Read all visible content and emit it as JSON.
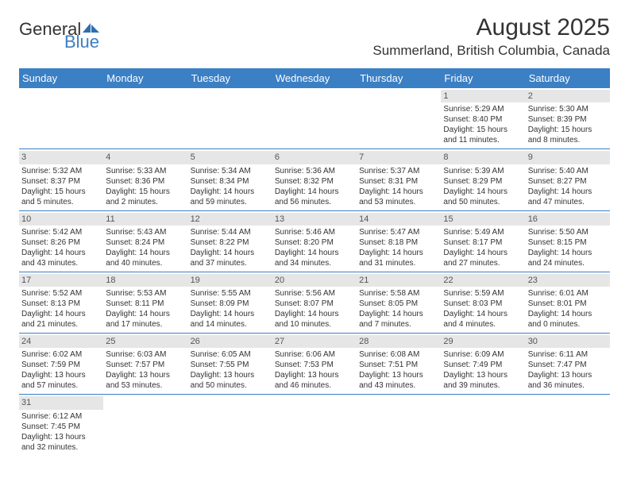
{
  "logo": {
    "general": "General",
    "blue": "Blue"
  },
  "title": "August 2025",
  "location": "Summerland, British Columbia, Canada",
  "colors": {
    "header_bg": "#3b7fc4",
    "header_text": "#ffffff",
    "row_divider": "#3b7fc4",
    "daynum_bg": "#e6e6e6",
    "text": "#333333"
  },
  "dayHeaders": [
    "Sunday",
    "Monday",
    "Tuesday",
    "Wednesday",
    "Thursday",
    "Friday",
    "Saturday"
  ],
  "weeks": [
    [
      null,
      null,
      null,
      null,
      null,
      {
        "n": "1",
        "sr": "Sunrise: 5:29 AM",
        "ss": "Sunset: 8:40 PM",
        "dl1": "Daylight: 15 hours",
        "dl2": "and 11 minutes."
      },
      {
        "n": "2",
        "sr": "Sunrise: 5:30 AM",
        "ss": "Sunset: 8:39 PM",
        "dl1": "Daylight: 15 hours",
        "dl2": "and 8 minutes."
      }
    ],
    [
      {
        "n": "3",
        "sr": "Sunrise: 5:32 AM",
        "ss": "Sunset: 8:37 PM",
        "dl1": "Daylight: 15 hours",
        "dl2": "and 5 minutes."
      },
      {
        "n": "4",
        "sr": "Sunrise: 5:33 AM",
        "ss": "Sunset: 8:36 PM",
        "dl1": "Daylight: 15 hours",
        "dl2": "and 2 minutes."
      },
      {
        "n": "5",
        "sr": "Sunrise: 5:34 AM",
        "ss": "Sunset: 8:34 PM",
        "dl1": "Daylight: 14 hours",
        "dl2": "and 59 minutes."
      },
      {
        "n": "6",
        "sr": "Sunrise: 5:36 AM",
        "ss": "Sunset: 8:32 PM",
        "dl1": "Daylight: 14 hours",
        "dl2": "and 56 minutes."
      },
      {
        "n": "7",
        "sr": "Sunrise: 5:37 AM",
        "ss": "Sunset: 8:31 PM",
        "dl1": "Daylight: 14 hours",
        "dl2": "and 53 minutes."
      },
      {
        "n": "8",
        "sr": "Sunrise: 5:39 AM",
        "ss": "Sunset: 8:29 PM",
        "dl1": "Daylight: 14 hours",
        "dl2": "and 50 minutes."
      },
      {
        "n": "9",
        "sr": "Sunrise: 5:40 AM",
        "ss": "Sunset: 8:27 PM",
        "dl1": "Daylight: 14 hours",
        "dl2": "and 47 minutes."
      }
    ],
    [
      {
        "n": "10",
        "sr": "Sunrise: 5:42 AM",
        "ss": "Sunset: 8:26 PM",
        "dl1": "Daylight: 14 hours",
        "dl2": "and 43 minutes."
      },
      {
        "n": "11",
        "sr": "Sunrise: 5:43 AM",
        "ss": "Sunset: 8:24 PM",
        "dl1": "Daylight: 14 hours",
        "dl2": "and 40 minutes."
      },
      {
        "n": "12",
        "sr": "Sunrise: 5:44 AM",
        "ss": "Sunset: 8:22 PM",
        "dl1": "Daylight: 14 hours",
        "dl2": "and 37 minutes."
      },
      {
        "n": "13",
        "sr": "Sunrise: 5:46 AM",
        "ss": "Sunset: 8:20 PM",
        "dl1": "Daylight: 14 hours",
        "dl2": "and 34 minutes."
      },
      {
        "n": "14",
        "sr": "Sunrise: 5:47 AM",
        "ss": "Sunset: 8:18 PM",
        "dl1": "Daylight: 14 hours",
        "dl2": "and 31 minutes."
      },
      {
        "n": "15",
        "sr": "Sunrise: 5:49 AM",
        "ss": "Sunset: 8:17 PM",
        "dl1": "Daylight: 14 hours",
        "dl2": "and 27 minutes."
      },
      {
        "n": "16",
        "sr": "Sunrise: 5:50 AM",
        "ss": "Sunset: 8:15 PM",
        "dl1": "Daylight: 14 hours",
        "dl2": "and 24 minutes."
      }
    ],
    [
      {
        "n": "17",
        "sr": "Sunrise: 5:52 AM",
        "ss": "Sunset: 8:13 PM",
        "dl1": "Daylight: 14 hours",
        "dl2": "and 21 minutes."
      },
      {
        "n": "18",
        "sr": "Sunrise: 5:53 AM",
        "ss": "Sunset: 8:11 PM",
        "dl1": "Daylight: 14 hours",
        "dl2": "and 17 minutes."
      },
      {
        "n": "19",
        "sr": "Sunrise: 5:55 AM",
        "ss": "Sunset: 8:09 PM",
        "dl1": "Daylight: 14 hours",
        "dl2": "and 14 minutes."
      },
      {
        "n": "20",
        "sr": "Sunrise: 5:56 AM",
        "ss": "Sunset: 8:07 PM",
        "dl1": "Daylight: 14 hours",
        "dl2": "and 10 minutes."
      },
      {
        "n": "21",
        "sr": "Sunrise: 5:58 AM",
        "ss": "Sunset: 8:05 PM",
        "dl1": "Daylight: 14 hours",
        "dl2": "and 7 minutes."
      },
      {
        "n": "22",
        "sr": "Sunrise: 5:59 AM",
        "ss": "Sunset: 8:03 PM",
        "dl1": "Daylight: 14 hours",
        "dl2": "and 4 minutes."
      },
      {
        "n": "23",
        "sr": "Sunrise: 6:01 AM",
        "ss": "Sunset: 8:01 PM",
        "dl1": "Daylight: 14 hours",
        "dl2": "and 0 minutes."
      }
    ],
    [
      {
        "n": "24",
        "sr": "Sunrise: 6:02 AM",
        "ss": "Sunset: 7:59 PM",
        "dl1": "Daylight: 13 hours",
        "dl2": "and 57 minutes."
      },
      {
        "n": "25",
        "sr": "Sunrise: 6:03 AM",
        "ss": "Sunset: 7:57 PM",
        "dl1": "Daylight: 13 hours",
        "dl2": "and 53 minutes."
      },
      {
        "n": "26",
        "sr": "Sunrise: 6:05 AM",
        "ss": "Sunset: 7:55 PM",
        "dl1": "Daylight: 13 hours",
        "dl2": "and 50 minutes."
      },
      {
        "n": "27",
        "sr": "Sunrise: 6:06 AM",
        "ss": "Sunset: 7:53 PM",
        "dl1": "Daylight: 13 hours",
        "dl2": "and 46 minutes."
      },
      {
        "n": "28",
        "sr": "Sunrise: 6:08 AM",
        "ss": "Sunset: 7:51 PM",
        "dl1": "Daylight: 13 hours",
        "dl2": "and 43 minutes."
      },
      {
        "n": "29",
        "sr": "Sunrise: 6:09 AM",
        "ss": "Sunset: 7:49 PM",
        "dl1": "Daylight: 13 hours",
        "dl2": "and 39 minutes."
      },
      {
        "n": "30",
        "sr": "Sunrise: 6:11 AM",
        "ss": "Sunset: 7:47 PM",
        "dl1": "Daylight: 13 hours",
        "dl2": "and 36 minutes."
      }
    ],
    [
      {
        "n": "31",
        "sr": "Sunrise: 6:12 AM",
        "ss": "Sunset: 7:45 PM",
        "dl1": "Daylight: 13 hours",
        "dl2": "and 32 minutes."
      },
      null,
      null,
      null,
      null,
      null,
      null
    ]
  ]
}
